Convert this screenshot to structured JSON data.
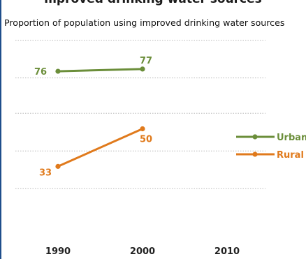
{
  "header": {
    "title_fragment": "mproved drinking water sources",
    "subtitle": "Proportion of population using improved drinking water sources"
  },
  "chart_data": {
    "type": "line",
    "x": [
      "1990",
      "2000",
      "2010"
    ],
    "ylim": [
      0,
      100
    ],
    "grid": true,
    "legend": "right",
    "series": [
      {
        "name": "Urban",
        "values": [
          76,
          77,
          null
        ],
        "color": "#6b8e3a"
      },
      {
        "name": "Rural",
        "values": [
          33,
          50,
          null
        ],
        "color": "#e07a1c"
      }
    ],
    "data_labels": {
      "Urban": [
        "76",
        "77"
      ],
      "Rural": [
        "33",
        "50"
      ]
    }
  }
}
